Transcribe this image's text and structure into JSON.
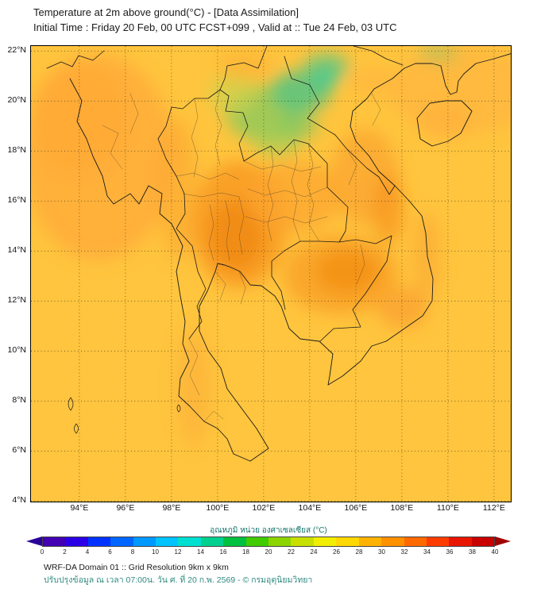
{
  "header": {
    "title": "Temperature at 2m above ground(°C) - [Data Assimilation]",
    "subtitle": "Initial Time : Friday 20 Feb, 00 UTC FCST+099 , Valid at :: Tue 24 Feb, 03 UTC"
  },
  "map": {
    "y_ticks": [
      "22°N",
      "20°N",
      "18°N",
      "16°N",
      "14°N",
      "12°N",
      "10°N",
      "8°N",
      "6°N",
      "4°N"
    ],
    "lat_values": [
      22,
      20,
      18,
      16,
      14,
      12,
      10,
      8,
      6,
      4
    ],
    "x_ticks": [
      "94°E",
      "96°E",
      "98°E",
      "100°E",
      "102°E",
      "104°E",
      "106°E",
      "108°E",
      "110°E",
      "112°E"
    ],
    "lon_values": [
      94,
      96,
      98,
      100,
      102,
      104,
      106,
      108,
      110,
      112
    ]
  },
  "field_summary": {
    "type": "heatmap",
    "units": "°C",
    "visible_range_c": [
      20,
      33
    ],
    "regions": [
      {
        "region": "Most sea and lowland areas",
        "approx_temp_c": 28
      },
      {
        "region": "Central Thailand plain",
        "approx_temp_c": 32
      },
      {
        "region": "Cambodia lowlands",
        "approx_temp_c": 31
      },
      {
        "region": "Northern Thailand / northern Laos highlands",
        "approx_temp_c": 22
      },
      {
        "region": "Myanmar western coast strip",
        "approx_temp_c": 30
      },
      {
        "region": "Annamite range (Laos/Vietnam border)",
        "approx_temp_c": 31
      }
    ]
  },
  "colorbar": {
    "title": "อุณหภูมิ หน่วย องศาเซลเซียส (°C)",
    "ticks": [
      "0",
      "2",
      "4",
      "6",
      "8",
      "10",
      "12",
      "14",
      "16",
      "18",
      "20",
      "22",
      "24",
      "26",
      "28",
      "30",
      "32",
      "34",
      "36",
      "38",
      "40"
    ],
    "segment_colors": [
      "#4400b3",
      "#2b00e6",
      "#0033ff",
      "#0066ff",
      "#0099ff",
      "#00c3ff",
      "#00e0d0",
      "#00d090",
      "#00c040",
      "#40cc00",
      "#8cd400",
      "#c8e000",
      "#f2ee00",
      "#ffd800",
      "#ffb300",
      "#ff9100",
      "#ff6a00",
      "#ff3c00",
      "#e81500",
      "#c80000"
    ],
    "left_arrow_color": "#2a0099",
    "right_arrow_color": "#a00000"
  },
  "footer": {
    "line1": "WRF-DA Domain 01 :: Grid Resolution 9km x 9km",
    "line2": "ปรับปรุงข้อมูล ณ เวลา 07:00น. วัน ศ. ที่ 20 ก.พ. 2569 - © กรมอุตุนิยมวิทยา"
  }
}
